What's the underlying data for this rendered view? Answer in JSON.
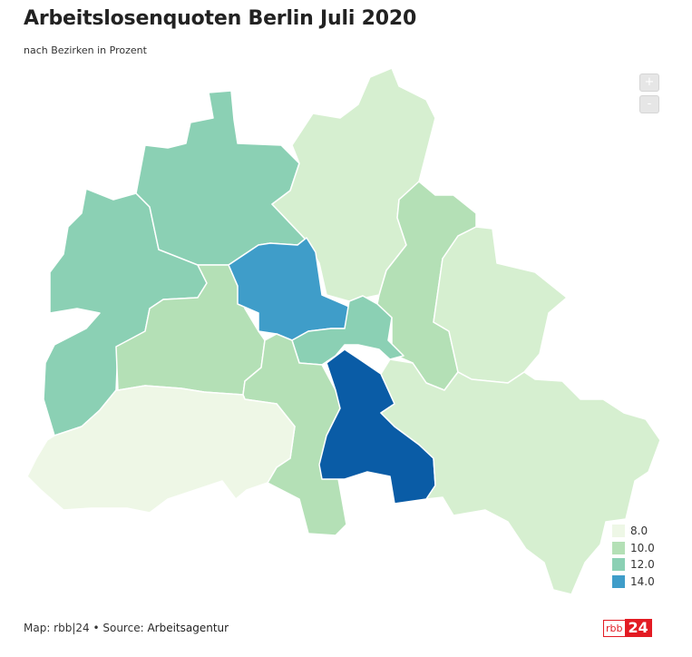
{
  "title": "Arbeitslosenquoten Berlin Juli 2020",
  "subtitle": "nach Bezirken in Prozent",
  "zoom": {
    "in_label": "+",
    "out_label": "-"
  },
  "legend": [
    {
      "label": "8.0",
      "color": "#eef7e6"
    },
    {
      "label": "10.0",
      "color": "#b4e0b6"
    },
    {
      "label": "12.0",
      "color": "#8bd0b4"
    },
    {
      "label": "14.0",
      "color": "#3f9dc9"
    }
  ],
  "credits": {
    "prefix": "Map: rbb|24 • Source: ",
    "source": "Arbeitsagentur"
  },
  "logo": {
    "left": "rbb",
    "right": "24"
  },
  "colors": {
    "lightest": "#eef7e6",
    "light": "#d6efd0",
    "light_green": "#b4e0b6",
    "teal": "#8bd0b4",
    "blue": "#3f9dc9",
    "dark_blue": "#0a5ca6",
    "brand_red": "#e31b23"
  }
}
